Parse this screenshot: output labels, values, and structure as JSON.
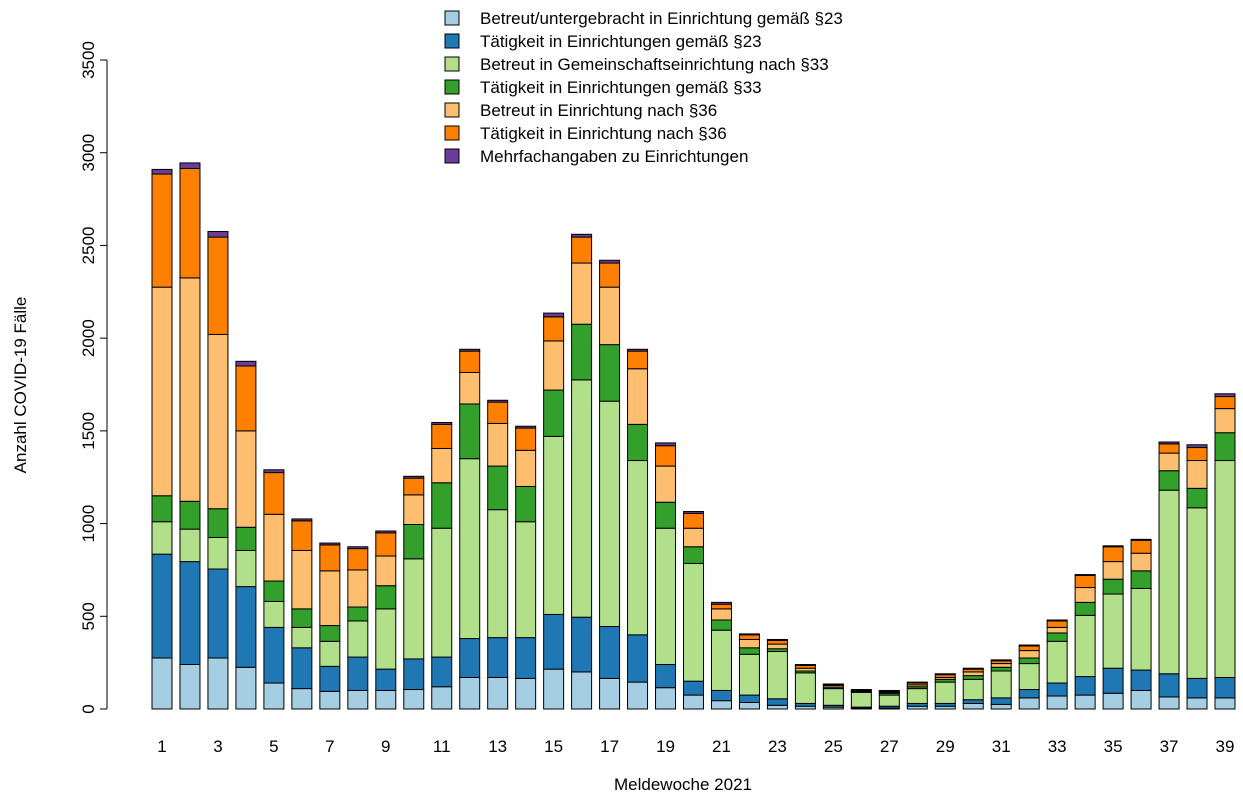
{
  "chart_data": {
    "type": "stacked_bar",
    "xlabel": "Meldewoche 2021",
    "ylabel": "Anzahl COVID-19 Fälle",
    "categories": [
      "1",
      null,
      "3",
      null,
      "5",
      null,
      "7",
      null,
      "9",
      null,
      "11",
      null,
      "13",
      null,
      "15",
      null,
      "17",
      null,
      "19",
      null,
      "21",
      null,
      "23",
      null,
      "25",
      null,
      "27",
      null,
      "29",
      null,
      "31",
      null,
      "33",
      null,
      "35",
      null,
      "37",
      null,
      "39"
    ],
    "ylim": [
      0,
      3500
    ],
    "yticks": [
      0,
      500,
      1000,
      1500,
      2000,
      2500,
      3000,
      3500
    ],
    "series": [
      {
        "name": "Betreut/untergebracht in Einrichtung gemäß §23",
        "color": "#a6cee3",
        "values": [
          275,
          240,
          275,
          225,
          140,
          110,
          95,
          100,
          100,
          105,
          120,
          170,
          170,
          165,
          215,
          200,
          165,
          145,
          115,
          75,
          45,
          35,
          20,
          15,
          10,
          5,
          5,
          15,
          15,
          30,
          25,
          60,
          70,
          75,
          85,
          100,
          65,
          60,
          60
        ]
      },
      {
        "name": "Tätigkeit in Einrichtungen gemäß §23",
        "color": "#1f78b4",
        "values": [
          560,
          555,
          480,
          435,
          300,
          220,
          135,
          180,
          115,
          165,
          160,
          210,
          215,
          220,
          295,
          295,
          280,
          255,
          125,
          75,
          55,
          40,
          35,
          15,
          10,
          5,
          10,
          15,
          15,
          20,
          35,
          45,
          70,
          100,
          135,
          110,
          125,
          105,
          110
        ]
      },
      {
        "name": "Betreut in Gemeinschaftseinrichtung nach §33",
        "color": "#b2df8a",
        "values": [
          175,
          175,
          170,
          195,
          140,
          110,
          135,
          195,
          325,
          540,
          695,
          970,
          690,
          625,
          960,
          1280,
          1215,
          940,
          735,
          635,
          325,
          220,
          255,
          165,
          90,
          80,
          60,
          80,
          115,
          110,
          145,
          140,
          225,
          330,
          400,
          440,
          990,
          920,
          1170
        ]
      },
      {
        "name": "Tätigkeit in Einrichtungen gemäß §33",
        "color": "#33a02c",
        "values": [
          140,
          150,
          155,
          125,
          110,
          100,
          85,
          75,
          125,
          185,
          245,
          295,
          235,
          190,
          250,
          300,
          305,
          195,
          140,
          90,
          55,
          35,
          15,
          10,
          5,
          5,
          10,
          10,
          15,
          20,
          20,
          30,
          45,
          70,
          80,
          95,
          105,
          105,
          150
        ]
      },
      {
        "name": "Betreut in Einrichtung nach §36",
        "color": "#fdbf6f",
        "values": [
          1125,
          1205,
          940,
          520,
          360,
          315,
          295,
          200,
          160,
          160,
          185,
          170,
          230,
          195,
          265,
          330,
          310,
          300,
          195,
          100,
          60,
          45,
          25,
          15,
          10,
          5,
          5,
          10,
          10,
          20,
          20,
          40,
          30,
          80,
          95,
          95,
          95,
          150,
          130
        ]
      },
      {
        "name": "Tätigkeit in Einrichtung nach §36",
        "color": "#ff7f00",
        "values": [
          610,
          590,
          525,
          350,
          225,
          160,
          140,
          115,
          125,
          90,
          130,
          115,
          115,
          120,
          130,
          140,
          130,
          95,
          110,
          80,
          25,
          25,
          20,
          15,
          5,
          0,
          5,
          10,
          15,
          15,
          15,
          25,
          35,
          65,
          80,
          70,
          50,
          70,
          65
        ]
      },
      {
        "name": "Mehrfachangaben zu Einrichtungen",
        "color": "#6a3d9a",
        "values": [
          25,
          30,
          30,
          25,
          15,
          10,
          10,
          10,
          10,
          10,
          10,
          10,
          10,
          10,
          20,
          15,
          15,
          10,
          15,
          10,
          10,
          5,
          5,
          5,
          5,
          5,
          5,
          5,
          5,
          5,
          5,
          5,
          5,
          5,
          5,
          5,
          10,
          15,
          15
        ]
      }
    ]
  }
}
